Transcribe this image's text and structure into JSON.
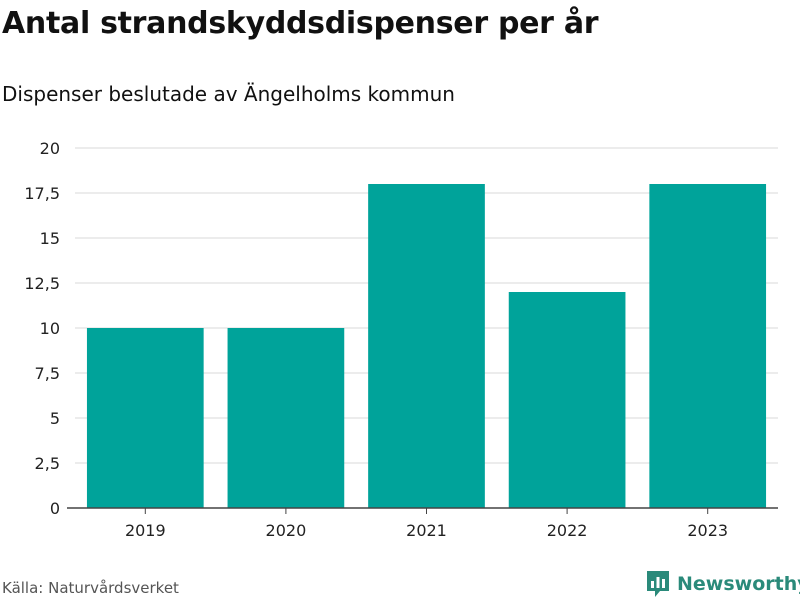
{
  "chart_data": {
    "type": "bar",
    "title": "Antal strandskyddsdispenser per år",
    "subtitle": "Dispenser beslutade av Ängelholms kommun",
    "categories": [
      "2019",
      "2020",
      "2021",
      "2022",
      "2023"
    ],
    "values": [
      10,
      10,
      18,
      12,
      18
    ],
    "ylim": [
      0,
      20
    ],
    "yticks": [
      0,
      2.5,
      5,
      7.5,
      10,
      12.5,
      15,
      17.5,
      20
    ],
    "ytick_labels": [
      "0",
      "2,5",
      "5",
      "7,5",
      "10",
      "12,5",
      "15",
      "17,5",
      "20"
    ],
    "xlabel": "",
    "ylabel": "",
    "grid": true,
    "bar_color": "#00a39a"
  },
  "footer": {
    "source": "Källa: Naturvårdsverket",
    "brand": "Newsworthy",
    "brand_icon": "newsworthy-logo-icon",
    "brand_color": "#2a8a7a"
  }
}
